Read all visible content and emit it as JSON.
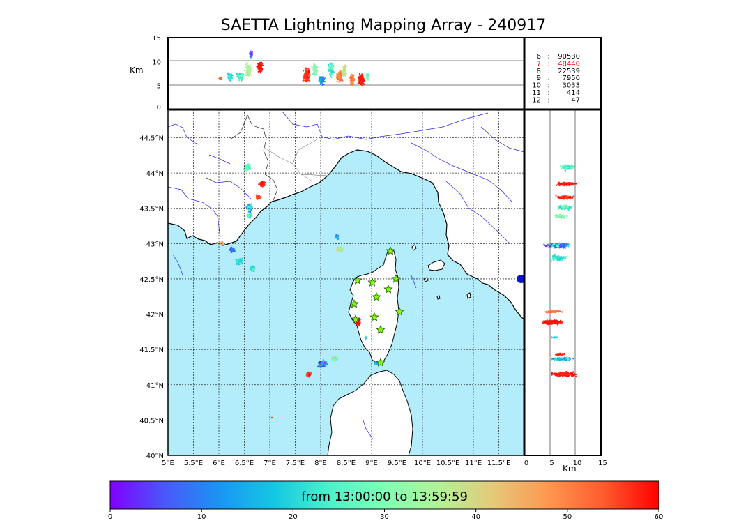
{
  "title": "SAETTA Lightning Mapping Array - 240917",
  "alt_panel": {
    "unit_label": "Km",
    "y_ticks": [
      "0",
      "5",
      "10",
      "15"
    ]
  },
  "side_panel": {
    "unit_label": "Km",
    "x_ticks": [
      "0",
      "5",
      "10",
      "15"
    ]
  },
  "station_counts": [
    {
      "n": "6",
      "sep": ":",
      "count": "90530",
      "color": "#000000"
    },
    {
      "n": "7",
      "sep": ":",
      "count": "48440",
      "color": "#ff0000"
    },
    {
      "n": "8",
      "sep": ":",
      "count": "22539",
      "color": "#000000"
    },
    {
      "n": "9",
      "sep": ":",
      "count": "7950",
      "color": "#000000"
    },
    {
      "n": "10",
      "sep": ":",
      "count": "3033",
      "color": "#000000"
    },
    {
      "n": "11",
      "sep": ":",
      "count": "414",
      "color": "#000000"
    },
    {
      "n": "12",
      "sep": ":",
      "count": "47",
      "color": "#000000"
    }
  ],
  "map": {
    "lon_ticks": [
      "5°E",
      "5.5°E",
      "6°E",
      "6.5°E",
      "7°E",
      "7.5°E",
      "8°E",
      "8.5°E",
      "9°E",
      "9.5°E",
      "10°E",
      "10.5°E",
      "11°E",
      "11.5°E"
    ],
    "lat_ticks": [
      "40°N",
      "40.5°N",
      "41°N",
      "41.5°N",
      "42°N",
      "42.5°N",
      "43°N",
      "43.5°N",
      "44°N",
      "44.5°N"
    ],
    "sea_color": "#b3ecfb",
    "station_color": "#7fff00"
  },
  "colorbar": {
    "label": "from 13:00:00 to 13:59:59",
    "ticks": [
      "0",
      "10",
      "20",
      "30",
      "40",
      "50",
      "60"
    ],
    "gradient": [
      "#8000ff",
      "#4a58fa",
      "#1996f3",
      "#14c8e1",
      "#4bf2cb",
      "#7fffb4",
      "#b3f296",
      "#e6c878",
      "#ff9650",
      "#ff5a2d",
      "#ff0000"
    ]
  }
}
